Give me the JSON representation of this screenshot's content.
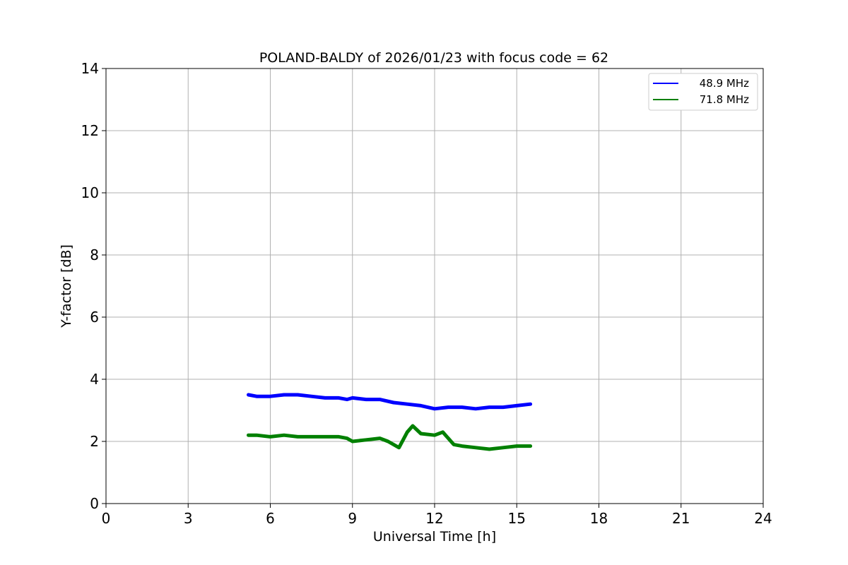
{
  "chart_data": {
    "type": "line",
    "title": "POLAND-BALDY of 2026/01/23 with focus code = 62",
    "xlabel": "Universal Time [h]",
    "ylabel": "Y-factor [dB]",
    "xlim": [
      0,
      24
    ],
    "ylim": [
      0,
      14
    ],
    "xticks": [
      0,
      3,
      6,
      9,
      12,
      15,
      18,
      21,
      24
    ],
    "yticks": [
      0,
      2,
      4,
      6,
      8,
      10,
      12,
      14
    ],
    "grid": true,
    "legend_position": "top-right",
    "series": [
      {
        "name": "48.9 MHz",
        "color": "#0000ff",
        "x": [
          5.2,
          5.5,
          6.0,
          6.5,
          7.0,
          7.5,
          8.0,
          8.5,
          8.8,
          9.0,
          9.5,
          10.0,
          10.5,
          11.0,
          11.5,
          12.0,
          12.5,
          12.7,
          13.0,
          13.5,
          14.0,
          14.5,
          15.0,
          15.5
        ],
        "y": [
          3.5,
          3.45,
          3.45,
          3.5,
          3.5,
          3.45,
          3.4,
          3.4,
          3.35,
          3.4,
          3.35,
          3.35,
          3.25,
          3.2,
          3.15,
          3.05,
          3.1,
          3.1,
          3.1,
          3.05,
          3.1,
          3.1,
          3.15,
          3.2
        ]
      },
      {
        "name": "71.8 MHz",
        "color": "#008000",
        "x": [
          5.2,
          5.5,
          6.0,
          6.5,
          7.0,
          7.5,
          8.0,
          8.5,
          8.8,
          9.0,
          9.5,
          10.0,
          10.3,
          10.7,
          11.0,
          11.2,
          11.5,
          12.0,
          12.3,
          12.7,
          13.0,
          13.5,
          14.0,
          14.5,
          15.0,
          15.5
        ],
        "y": [
          2.2,
          2.2,
          2.15,
          2.2,
          2.15,
          2.15,
          2.15,
          2.15,
          2.1,
          2.0,
          2.05,
          2.1,
          2.0,
          1.8,
          2.3,
          2.5,
          2.25,
          2.2,
          2.3,
          1.9,
          1.85,
          1.8,
          1.75,
          1.8,
          1.85,
          1.85
        ]
      }
    ]
  }
}
